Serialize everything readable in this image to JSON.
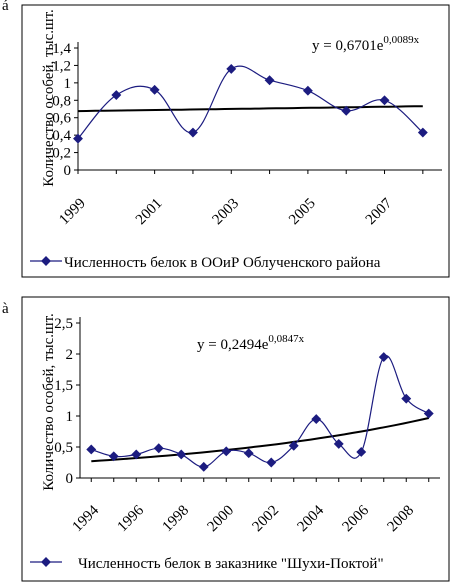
{
  "labels": {
    "top": "á",
    "bottom": "à"
  },
  "chart_data": [
    {
      "type": "line",
      "ylabel": "Количество особей, тыс.шт.",
      "xlabel": "",
      "yticks": [
        "0",
        "0,2",
        "0,4",
        "0,6",
        "0,8",
        "1",
        "1,2",
        "1,4"
      ],
      "xticks": [
        "1999",
        "2001",
        "2003",
        "2005",
        "2007"
      ],
      "ylim": [
        0,
        1.4
      ],
      "xlim": [
        1999,
        2008
      ],
      "x": [
        1999,
        2000,
        2001,
        2002,
        2003,
        2004,
        2005,
        2006,
        2007,
        2008
      ],
      "series": [
        {
          "name": "Численность белок в ООиР Облученского района",
          "values": [
            0.36,
            0.86,
            0.92,
            0.43,
            1.16,
            1.03,
            0.91,
            0.68,
            0.8,
            0.43
          ]
        }
      ],
      "trendline": {
        "type": "exponential",
        "a": 0.6701,
        "b": 0.0089,
        "x0": 1998
      },
      "equation": {
        "main": "y = 0,6701e",
        "exp": "0,0089x"
      },
      "grid": false,
      "legend": "bottom",
      "colors": {
        "series": "#1c1c80",
        "marker": "#1c1c80",
        "trend": "#000000"
      }
    },
    {
      "type": "line",
      "ylabel": "Количество особей, тыс.шт.",
      "xlabel": "",
      "yticks": [
        "0",
        "0,5",
        "1",
        "1,5",
        "2",
        "2,5"
      ],
      "xticks": [
        "1994",
        "1996",
        "1998",
        "2000",
        "2002",
        "2004",
        "2006",
        "2008"
      ],
      "ylim": [
        0,
        2.5
      ],
      "xlim": [
        1994,
        2009
      ],
      "x": [
        1994,
        1995,
        1996,
        1997,
        1998,
        1999,
        2000,
        2001,
        2002,
        2003,
        2004,
        2005,
        2006,
        2007,
        2008,
        2009
      ],
      "series": [
        {
          "name": "Численность белок в заказнике \"Шухи-Поктой\"",
          "values": [
            0.46,
            0.35,
            0.38,
            0.48,
            0.38,
            0.18,
            0.43,
            0.4,
            0.25,
            0.52,
            0.95,
            0.55,
            0.42,
            1.95,
            1.28,
            1.04
          ]
        }
      ],
      "trendline": {
        "type": "exponential",
        "a": 0.2494,
        "b": 0.0847,
        "x0": 1993
      },
      "equation": {
        "main": "y = 0,2494e",
        "exp": "0,0847x"
      },
      "grid": false,
      "legend": "bottom",
      "colors": {
        "series": "#1c1c80",
        "marker": "#1c1c80",
        "trend": "#000000"
      }
    }
  ]
}
